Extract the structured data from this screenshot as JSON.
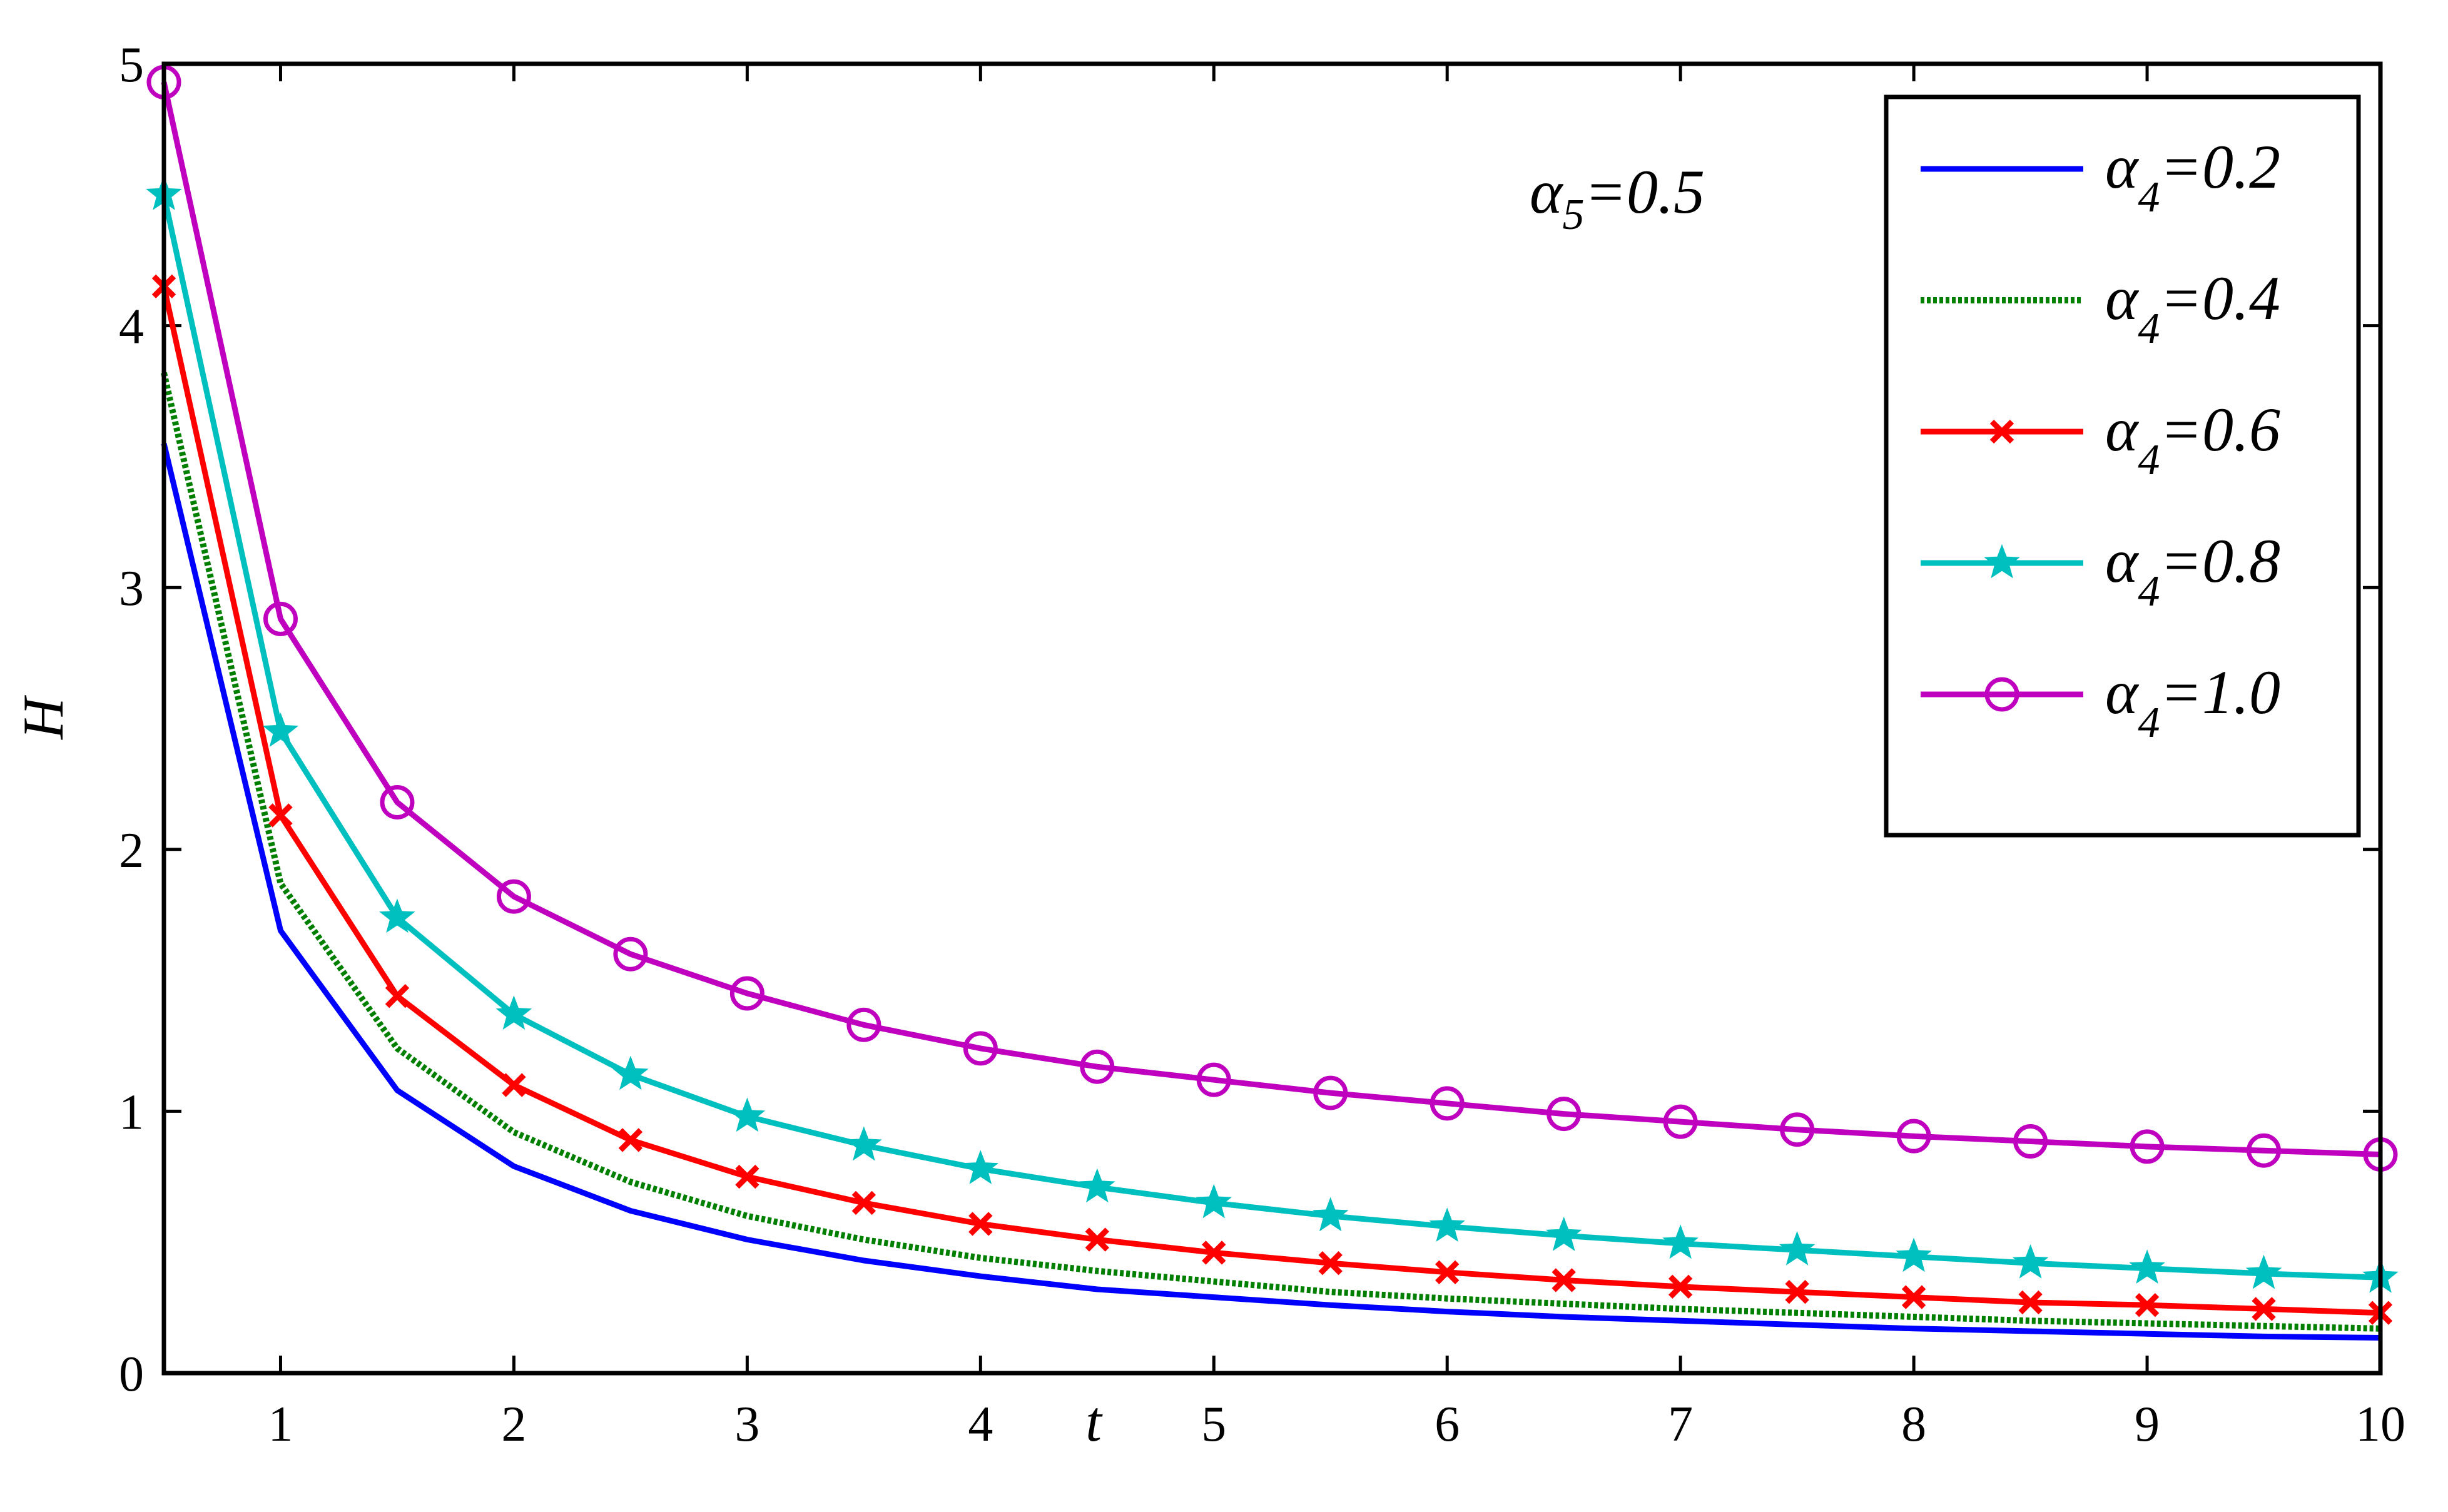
{
  "chart_data": {
    "type": "line",
    "xlabel": "t",
    "ylabel": "H",
    "xlim": [
      0.5,
      10
    ],
    "ylim": [
      0,
      5
    ],
    "x_ticks": [
      1,
      2,
      3,
      4,
      5,
      6,
      7,
      8,
      9,
      10
    ],
    "y_ticks": [
      0,
      1,
      2,
      3,
      4,
      5
    ],
    "grid": false,
    "legend_position": "top-right",
    "annotation": {
      "symbol": "α",
      "subscript": "5",
      "text": "=0.5"
    },
    "x": [
      0.5,
      1,
      1.5,
      2,
      2.5,
      3,
      3.5,
      4,
      4.5,
      5,
      5.5,
      6,
      6.5,
      7,
      7.5,
      8,
      8.5,
      9,
      9.5,
      10
    ],
    "series": [
      {
        "name": "α4=0.2",
        "symbol": "α",
        "subscript": "4",
        "value_text": "=0.2",
        "color": "#0000ff",
        "line_style": "solid",
        "marker": "none",
        "values": [
          3.55,
          1.69,
          1.08,
          0.79,
          0.62,
          0.51,
          0.43,
          0.37,
          0.32,
          0.29,
          0.26,
          0.235,
          0.215,
          0.2,
          0.185,
          0.17,
          0.16,
          0.15,
          0.14,
          0.135
        ]
      },
      {
        "name": "α4=0.4",
        "symbol": "α",
        "subscript": "4",
        "value_text": "=0.4",
        "color": "#007f00",
        "line_style": "dotted",
        "marker": "none",
        "values": [
          3.82,
          1.87,
          1.24,
          0.92,
          0.73,
          0.6,
          0.51,
          0.44,
          0.39,
          0.35,
          0.31,
          0.285,
          0.265,
          0.245,
          0.23,
          0.215,
          0.2,
          0.19,
          0.18,
          0.17
        ]
      },
      {
        "name": "α4=0.6",
        "symbol": "α",
        "subscript": "4",
        "value_text": "=0.6",
        "color": "#ff0000",
        "line_style": "solid",
        "marker": "x",
        "values": [
          4.15,
          2.13,
          1.44,
          1.1,
          0.89,
          0.75,
          0.65,
          0.57,
          0.51,
          0.46,
          0.42,
          0.385,
          0.355,
          0.33,
          0.31,
          0.29,
          0.27,
          0.26,
          0.245,
          0.23
        ]
      },
      {
        "name": "α4=0.8",
        "symbol": "α",
        "subscript": "4",
        "value_text": "=0.8",
        "color": "#00bfbf",
        "line_style": "solid",
        "marker": "star",
        "values": [
          4.5,
          2.45,
          1.74,
          1.37,
          1.14,
          0.98,
          0.87,
          0.78,
          0.71,
          0.65,
          0.6,
          0.56,
          0.525,
          0.495,
          0.47,
          0.445,
          0.42,
          0.4,
          0.38,
          0.365
        ]
      },
      {
        "name": "α4=1.0",
        "symbol": "α",
        "subscript": "4",
        "value_text": "=1.0",
        "color": "#bf00bf",
        "line_style": "solid",
        "marker": "circle",
        "values": [
          4.93,
          2.88,
          2.18,
          1.82,
          1.6,
          1.45,
          1.33,
          1.24,
          1.17,
          1.12,
          1.07,
          1.03,
          0.99,
          0.96,
          0.93,
          0.905,
          0.885,
          0.865,
          0.85,
          0.835
        ]
      }
    ]
  }
}
